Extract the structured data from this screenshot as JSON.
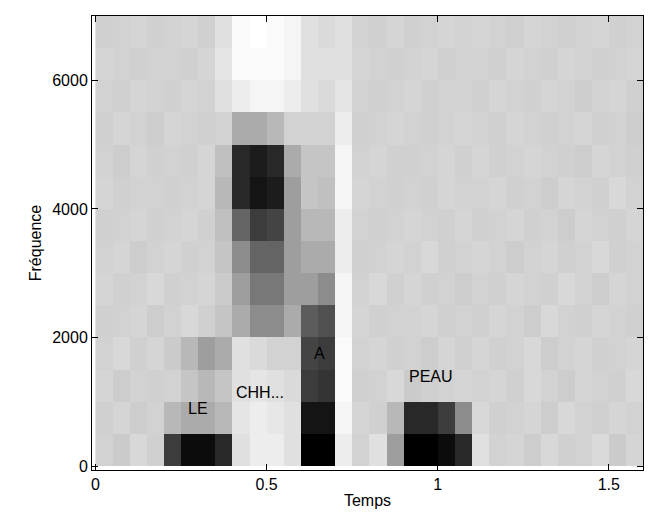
{
  "chart_data": {
    "type": "heatmap",
    "x_label": "Temps",
    "y_label": "Fréquence",
    "xlim": [
      -0.01,
      1.6
    ],
    "ylim": [
      -60,
      7000
    ],
    "xticks": [
      0,
      0.5,
      1,
      1.5
    ],
    "yticks": [
      0,
      2000,
      4000,
      6000
    ],
    "grid": false,
    "x": [
      0.025,
      0.075,
      0.125,
      0.175,
      0.225,
      0.275,
      0.325,
      0.375,
      0.425,
      0.475,
      0.525,
      0.575,
      0.625,
      0.675,
      0.725,
      0.775,
      0.825,
      0.875,
      0.925,
      0.975,
      1.025,
      1.075,
      1.125,
      1.175,
      1.225,
      1.275,
      1.325,
      1.375,
      1.425,
      1.475,
      1.525,
      1.575
    ],
    "y": [
      250,
      750,
      1250,
      1750,
      2250,
      2750,
      3250,
      3750,
      4250,
      4750,
      5250,
      5750,
      6250,
      6750
    ],
    "z": [
      [
        0.35,
        0.38,
        0.33,
        0.36,
        0.8,
        0.92,
        0.92,
        0.85,
        0.3,
        0.25,
        0.25,
        0.3,
        0.95,
        0.95,
        0.25,
        0.35,
        0.3,
        0.55,
        0.95,
        0.95,
        0.92,
        0.85,
        0.3,
        0.35,
        0.34,
        0.37,
        0.33,
        0.36,
        0.35,
        0.32,
        0.38,
        0.34
      ],
      [
        0.36,
        0.34,
        0.37,
        0.35,
        0.45,
        0.5,
        0.5,
        0.45,
        0.28,
        0.25,
        0.27,
        0.3,
        0.9,
        0.9,
        0.22,
        0.34,
        0.36,
        0.45,
        0.85,
        0.85,
        0.8,
        0.6,
        0.33,
        0.36,
        0.35,
        0.34,
        0.37,
        0.33,
        0.35,
        0.36,
        0.34,
        0.35
      ],
      [
        0.34,
        0.37,
        0.35,
        0.36,
        0.35,
        0.4,
        0.45,
        0.4,
        0.3,
        0.28,
        0.3,
        0.32,
        0.8,
        0.82,
        0.2,
        0.36,
        0.35,
        0.33,
        0.38,
        0.36,
        0.35,
        0.34,
        0.35,
        0.34,
        0.36,
        0.33,
        0.35,
        0.37,
        0.34,
        0.35,
        0.36,
        0.33
      ],
      [
        0.35,
        0.33,
        0.36,
        0.34,
        0.38,
        0.45,
        0.55,
        0.5,
        0.3,
        0.32,
        0.35,
        0.35,
        0.78,
        0.8,
        0.2,
        0.35,
        0.34,
        0.36,
        0.35,
        0.37,
        0.34,
        0.36,
        0.34,
        0.36,
        0.35,
        0.33,
        0.37,
        0.35,
        0.34,
        0.36,
        0.35,
        0.34
      ],
      [
        0.36,
        0.35,
        0.34,
        0.37,
        0.35,
        0.33,
        0.36,
        0.4,
        0.5,
        0.6,
        0.6,
        0.5,
        0.72,
        0.75,
        0.22,
        0.34,
        0.36,
        0.35,
        0.35,
        0.34,
        0.36,
        0.35,
        0.36,
        0.34,
        0.35,
        0.37,
        0.33,
        0.35,
        0.36,
        0.34,
        0.35,
        0.36
      ],
      [
        0.34,
        0.36,
        0.35,
        0.33,
        0.36,
        0.35,
        0.34,
        0.38,
        0.55,
        0.65,
        0.65,
        0.55,
        0.55,
        0.6,
        0.22,
        0.35,
        0.33,
        0.36,
        0.34,
        0.36,
        0.35,
        0.37,
        0.35,
        0.36,
        0.34,
        0.35,
        0.36,
        0.33,
        0.35,
        0.37,
        0.34,
        0.35
      ],
      [
        0.35,
        0.34,
        0.37,
        0.35,
        0.34,
        0.36,
        0.35,
        0.4,
        0.6,
        0.7,
        0.7,
        0.55,
        0.5,
        0.5,
        0.25,
        0.36,
        0.35,
        0.34,
        0.35,
        0.33,
        0.36,
        0.35,
        0.34,
        0.35,
        0.37,
        0.35,
        0.34,
        0.36,
        0.35,
        0.33,
        0.36,
        0.35
      ],
      [
        0.36,
        0.35,
        0.34,
        0.36,
        0.35,
        0.34,
        0.36,
        0.42,
        0.7,
        0.8,
        0.78,
        0.55,
        0.45,
        0.45,
        0.25,
        0.35,
        0.36,
        0.35,
        0.34,
        0.35,
        0.36,
        0.34,
        0.36,
        0.35,
        0.34,
        0.36,
        0.35,
        0.37,
        0.34,
        0.35,
        0.36,
        0.34
      ],
      [
        0.34,
        0.36,
        0.35,
        0.35,
        0.36,
        0.35,
        0.34,
        0.45,
        0.85,
        0.9,
        0.88,
        0.55,
        0.4,
        0.42,
        0.22,
        0.34,
        0.35,
        0.36,
        0.35,
        0.36,
        0.34,
        0.35,
        0.35,
        0.34,
        0.36,
        0.35,
        0.37,
        0.34,
        0.35,
        0.36,
        0.33,
        0.35
      ],
      [
        0.35,
        0.37,
        0.34,
        0.36,
        0.35,
        0.36,
        0.34,
        0.42,
        0.85,
        0.88,
        0.85,
        0.5,
        0.4,
        0.4,
        0.22,
        0.35,
        0.34,
        0.36,
        0.36,
        0.35,
        0.34,
        0.36,
        0.34,
        0.36,
        0.35,
        0.34,
        0.35,
        0.36,
        0.37,
        0.34,
        0.35,
        0.36
      ],
      [
        0.36,
        0.34,
        0.35,
        0.37,
        0.34,
        0.35,
        0.36,
        0.35,
        0.5,
        0.5,
        0.45,
        0.35,
        0.35,
        0.35,
        0.25,
        0.36,
        0.35,
        0.34,
        0.35,
        0.36,
        0.35,
        0.34,
        0.35,
        0.36,
        0.34,
        0.35,
        0.36,
        0.35,
        0.34,
        0.36,
        0.35,
        0.37
      ],
      [
        0.35,
        0.36,
        0.34,
        0.35,
        0.36,
        0.34,
        0.35,
        0.3,
        0.25,
        0.22,
        0.22,
        0.25,
        0.3,
        0.32,
        0.28,
        0.35,
        0.36,
        0.35,
        0.34,
        0.36,
        0.35,
        0.35,
        0.36,
        0.34,
        0.35,
        0.36,
        0.34,
        0.35,
        0.37,
        0.35,
        0.34,
        0.36
      ],
      [
        0.34,
        0.35,
        0.36,
        0.35,
        0.35,
        0.36,
        0.34,
        0.28,
        0.2,
        0.2,
        0.2,
        0.22,
        0.3,
        0.3,
        0.3,
        0.34,
        0.35,
        0.36,
        0.35,
        0.34,
        0.36,
        0.35,
        0.35,
        0.36,
        0.34,
        0.35,
        0.36,
        0.34,
        0.35,
        0.36,
        0.35,
        0.34
      ],
      [
        0.36,
        0.35,
        0.34,
        0.36,
        0.35,
        0.34,
        0.36,
        0.3,
        0.2,
        0.18,
        0.2,
        0.22,
        0.3,
        0.32,
        0.3,
        0.35,
        0.36,
        0.34,
        0.36,
        0.35,
        0.34,
        0.35,
        0.34,
        0.35,
        0.36,
        0.34,
        0.35,
        0.36,
        0.35,
        0.34,
        0.36,
        0.35
      ]
    ],
    "annotations": [
      {
        "text": "LE",
        "x": 0.3,
        "y": 900
      },
      {
        "text": "CHH...",
        "x": 0.48,
        "y": 1150
      },
      {
        "text": "A",
        "x": 0.655,
        "y": 1750
      },
      {
        "text": "PEAU",
        "x": 0.98,
        "y": 1400
      }
    ]
  }
}
